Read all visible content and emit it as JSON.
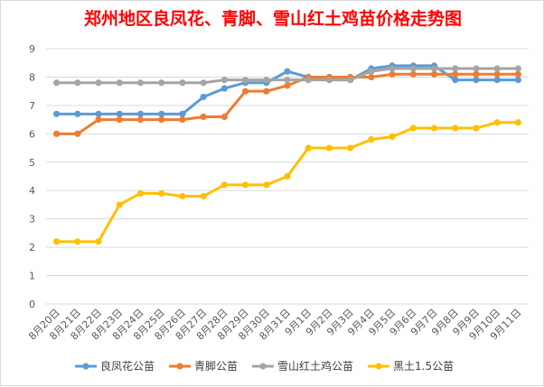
{
  "chart_data": {
    "type": "line",
    "title": "郑州地区良凤花、青脚、雪山红土鸡苗价格走势图",
    "x": [
      "8月20日",
      "8月21日",
      "8月22日",
      "8月23日",
      "8月24日",
      "8月25日",
      "8月26日",
      "8月27日",
      "8月28日",
      "8月29日",
      "8月30日",
      "8月31日",
      "9月1日",
      "9月2日",
      "9月3日",
      "9月4日",
      "9月5日",
      "9月6日",
      "9月7日",
      "9月8日",
      "9月9日",
      "9月10日",
      "9月11日"
    ],
    "ylim": [
      0,
      9
    ],
    "yticks": [
      0,
      1,
      2,
      3,
      4,
      5,
      6,
      7,
      8,
      9
    ],
    "grid": true,
    "legend_position": "bottom",
    "series": [
      {
        "name": "良凤花公苗",
        "color": "#5b9bd5",
        "values": [
          6.7,
          6.7,
          6.7,
          6.7,
          6.7,
          6.7,
          6.7,
          7.3,
          7.6,
          7.8,
          7.8,
          8.2,
          8.0,
          7.9,
          7.9,
          8.3,
          8.4,
          8.4,
          8.4,
          7.9,
          7.9,
          7.9,
          7.9
        ]
      },
      {
        "name": "青脚公苗",
        "color": "#ed7d31",
        "values": [
          6.0,
          6.0,
          6.5,
          6.5,
          6.5,
          6.5,
          6.5,
          6.6,
          6.6,
          7.5,
          7.5,
          7.7,
          8.0,
          8.0,
          8.0,
          8.0,
          8.1,
          8.1,
          8.1,
          8.1,
          8.1,
          8.1,
          8.1
        ]
      },
      {
        "name": "雪山红土鸡公苗",
        "color": "#a5a5a5",
        "values": [
          7.8,
          7.8,
          7.8,
          7.8,
          7.8,
          7.8,
          7.8,
          7.8,
          7.9,
          7.9,
          7.9,
          7.9,
          7.9,
          7.9,
          7.9,
          8.2,
          8.3,
          8.3,
          8.3,
          8.3,
          8.3,
          8.3,
          8.3
        ]
      },
      {
        "name": "黑土1.5公苗",
        "color": "#ffc000",
        "values": [
          2.2,
          2.2,
          2.2,
          3.5,
          3.9,
          3.9,
          3.8,
          3.8,
          4.2,
          4.2,
          4.2,
          4.5,
          5.5,
          5.5,
          5.5,
          5.8,
          5.9,
          6.2,
          6.2,
          6.2,
          6.2,
          6.4,
          6.4
        ]
      }
    ]
  }
}
